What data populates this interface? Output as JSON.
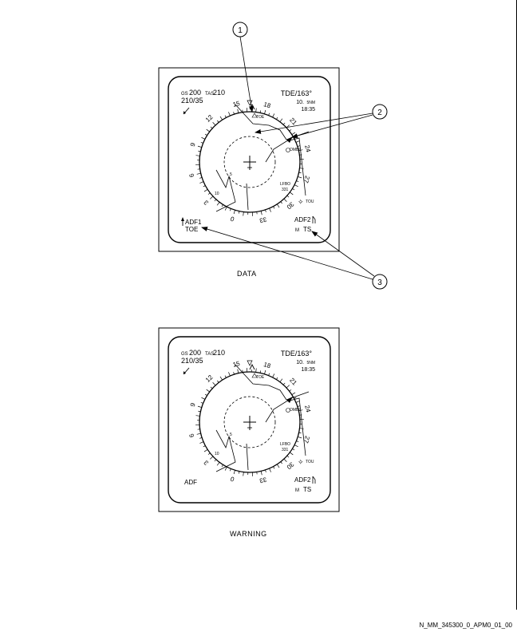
{
  "captions": {
    "data": "DATA",
    "warning": "WARNING"
  },
  "doc_ref": "N_MM_345300_0_APM0_01_00",
  "callouts": [
    "1",
    "2",
    "3"
  ],
  "panels": {
    "data": {
      "gs_label": "GS",
      "gs_value": "200",
      "tas_label": "TAS",
      "tas_value": "210",
      "wind": "210/35",
      "waypoint": "TDE/163°",
      "distance_value": "10.",
      "distance_unit": "5NM",
      "time": "18:35",
      "adf1_label": "ADF1",
      "adf1_ident": "TOE",
      "adf2_label": "ADF2",
      "adf2_ident": "TS",
      "adf2_mode": "M",
      "toe_label": "TOE",
      "omb_label": "OMBI",
      "lfbo_label": "LFBO",
      "lfbo_sub": "331",
      "tou_label": "TOU",
      "range_ring_label": "5",
      "range_label_10": "10",
      "heading_labels": [
        "0",
        "3",
        "6",
        "9",
        "12",
        "15",
        "18",
        "21",
        "24",
        "27",
        "30",
        "33"
      ]
    },
    "warning": {
      "gs_label": "GS",
      "gs_value": "200",
      "tas_label": "TAS",
      "tas_value": "210",
      "wind": "210/35",
      "waypoint": "TDE/163°",
      "distance_value": "10.",
      "distance_unit": "5NM",
      "time": "18:35",
      "adf_left": "ADF",
      "adf2_label": "ADF2",
      "adf2_ident": "TS",
      "adf2_mode": "M",
      "toe_label": "TOE",
      "omb_label": "OMBI",
      "lfbo_label": "LFBO",
      "lfbo_sub": "331",
      "tou_label": "TOU",
      "range_ring_label": "5",
      "range_label_10": "10",
      "heading_labels": [
        "0",
        "3",
        "6",
        "9",
        "12",
        "15",
        "18",
        "21",
        "24",
        "27",
        "30",
        "33"
      ]
    }
  }
}
